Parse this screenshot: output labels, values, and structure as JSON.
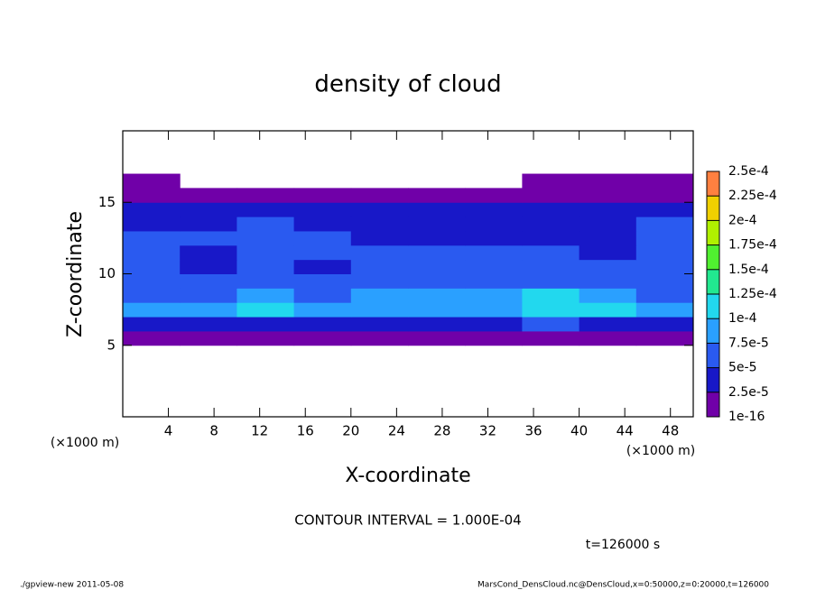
{
  "chart_data": {
    "type": "heatmap",
    "title": "density of cloud",
    "xlabel": "X-coordinate",
    "ylabel": "Z-coordinate",
    "x_unit": "(×1000 m)",
    "y_unit": "(×1000 m)",
    "annotation": "CONTOUR INTERVAL = 1.000E-04",
    "time_label": "t=126000 s",
    "footer_left": "./gpview-new  2011-05-08",
    "footer_right": "MarsCond_DensCloud.nc@DensCloud,x=0:50000,z=0:20000,t=126000",
    "xlim": [
      0,
      50
    ],
    "ylim": [
      0,
      20
    ],
    "xticks": [
      4,
      8,
      12,
      16,
      20,
      24,
      28,
      32,
      36,
      40,
      44,
      48
    ],
    "yticks": [
      5,
      10,
      15
    ],
    "x": [
      2.5,
      7.5,
      12.5,
      17.5,
      22.5,
      27.5,
      32.5,
      37.5,
      42.5,
      47.5
    ],
    "y": [
      5.5,
      6.5,
      7.5,
      8.5,
      9.5,
      10.5,
      11.5,
      12.5,
      13.5,
      14.5,
      15.5,
      16.5
    ],
    "z": [
      [
        1e-05,
        1e-05,
        1e-05,
        1e-05,
        1e-05,
        1e-05,
        1e-05,
        1e-05,
        1e-05,
        1e-05
      ],
      [
        4e-05,
        4e-05,
        4.5e-05,
        4e-05,
        4.5e-05,
        4.5e-05,
        4.5e-05,
        5e-05,
        4.5e-05,
        4.5e-05
      ],
      [
        8e-05,
        8e-05,
        0.00011,
        8e-05,
        9e-05,
        9e-05,
        9e-05,
        0.00012,
        0.000105,
        9e-05
      ],
      [
        7e-05,
        6.5e-05,
        8e-05,
        6e-05,
        8e-05,
        7.5e-05,
        8e-05,
        0.000115,
        8e-05,
        7e-05
      ],
      [
        6e-05,
        5e-05,
        6e-05,
        5e-05,
        6.5e-05,
        6.5e-05,
        6.5e-05,
        7e-05,
        6e-05,
        5.5e-05
      ],
      [
        5.5e-05,
        4e-05,
        5.5e-05,
        4.5e-05,
        6e-05,
        6e-05,
        6e-05,
        6e-05,
        5e-05,
        5e-05
      ],
      [
        5e-05,
        4.5e-05,
        6e-05,
        5e-05,
        5.5e-05,
        6e-05,
        5e-05,
        5.5e-05,
        4.5e-05,
        5e-05
      ],
      [
        5e-05,
        5e-05,
        5.5e-05,
        5e-05,
        4.5e-05,
        4.5e-05,
        3.5e-05,
        4e-05,
        4.5e-05,
        5.5e-05
      ],
      [
        4.5e-05,
        4.5e-05,
        5e-05,
        4e-05,
        3.5e-05,
        3e-05,
        3e-05,
        3e-05,
        4e-05,
        5e-05
      ],
      [
        3e-05,
        3e-05,
        3e-05,
        3e-05,
        2.8e-05,
        2.7e-05,
        2.7e-05,
        2.7e-05,
        3e-05,
        3e-05
      ],
      [
        1e-05,
        1e-05,
        1e-05,
        1e-05,
        1e-05,
        1e-05,
        1e-05,
        1e-05,
        1e-05,
        1e-05
      ],
      [
        5e-06,
        0,
        0,
        0,
        0,
        0,
        0,
        5e-06,
        5e-06,
        5e-06
      ]
    ],
    "levels": [
      1e-16,
      {
        "value": 2.5e-05,
        "label": "2.5e-5"
      },
      {
        "value": 5e-05,
        "label": "5e-5"
      },
      {
        "value": 7.5e-05,
        "label": "7.5e-5"
      },
      {
        "value": 0.0001,
        "label": "1e-4"
      },
      {
        "value": 0.000125,
        "label": "1.25e-4"
      },
      {
        "value": 0.00015,
        "label": "1.5e-4"
      },
      {
        "value": 0.000175,
        "label": "1.75e-4"
      },
      {
        "value": 0.0002,
        "label": "2e-4"
      },
      {
        "value": 0.000225,
        "label": "2.25e-4"
      },
      {
        "value": 0.00025,
        "label": "2.5e-4"
      }
    ],
    "colors": [
      "#7000a8",
      "#1818c8",
      "#2a5af0",
      "#2aa0ff",
      "#22d8ee",
      "#22e890",
      "#50f030",
      "#b0f000",
      "#f0d000",
      "#ff8040"
    ]
  }
}
